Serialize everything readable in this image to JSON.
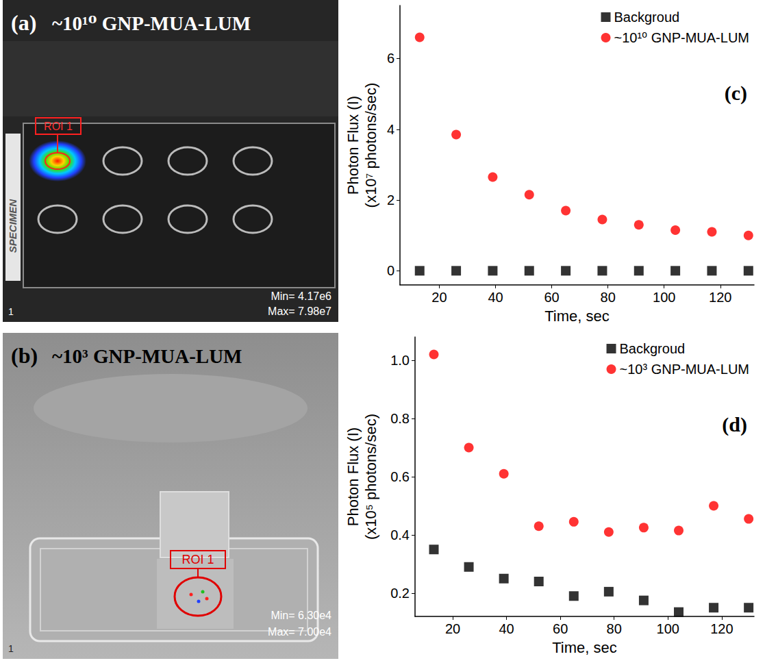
{
  "images": [
    {
      "label": "(a)",
      "title": "~10¹⁰ GNP-MUA-LUM",
      "roi": "ROI 1",
      "specimen": "SPECIMEN",
      "min": "Min= 4.17e6",
      "max": "Max= 7.98e7",
      "frame": "1"
    },
    {
      "label": "(b)",
      "title": "~10³ GNP-MUA-LUM",
      "roi": "ROI 1",
      "min": "Min= 6.30e4",
      "max": "Max= 7.00e4",
      "frame": "1"
    }
  ],
  "chart_data": [
    {
      "type": "scatter",
      "annotations": [
        "(c)"
      ],
      "xlabel": "Time, sec",
      "ylabel": "Photon Flux (I)\n(x10⁷ photons/sec)",
      "x": [
        13,
        26,
        39,
        52,
        65,
        78,
        91,
        104,
        117,
        130
      ],
      "xlim": [
        6,
        132
      ],
      "xticks": [
        20,
        40,
        60,
        80,
        100,
        120
      ],
      "ylim": [
        -0.4,
        7.5
      ],
      "yticks": [
        0,
        2,
        4,
        6
      ],
      "grid": false,
      "legend": "upper right",
      "series": [
        {
          "name": "Backgroud",
          "color": "#000000",
          "marker": "square",
          "values": [
            0,
            0,
            0,
            0,
            0,
            0,
            0,
            0,
            0,
            0
          ]
        },
        {
          "name": "~10¹⁰ GNP-MUA-LUM",
          "color": "#ff0000",
          "marker": "circle",
          "values": [
            6.6,
            3.85,
            2.65,
            2.15,
            1.7,
            1.45,
            1.3,
            1.15,
            1.1,
            1.0
          ]
        }
      ]
    },
    {
      "type": "scatter",
      "annotations": [
        "(d)"
      ],
      "xlabel": "Time, sec",
      "ylabel": "Photon Flux (I)\n(x10⁵ photons/sec)",
      "x": [
        13,
        26,
        39,
        52,
        65,
        78,
        91,
        104,
        117,
        130
      ],
      "xlim": [
        6,
        132
      ],
      "xticks": [
        20,
        40,
        60,
        80,
        100,
        120
      ],
      "ylim": [
        0.12,
        1.08
      ],
      "yticks": [
        0.2,
        0.4,
        0.6,
        0.8,
        {
          "value": 1,
          "label": "1.0"
        }
      ],
      "grid": false,
      "legend": "upper right",
      "series": [
        {
          "name": "Backgroud",
          "color": "#000000",
          "marker": "square",
          "values": [
            0.35,
            0.29,
            0.25,
            0.24,
            0.19,
            0.205,
            0.175,
            0.135,
            0.15,
            0.15
          ]
        },
        {
          "name": "~10³ GNP-MUA-LUM",
          "color": "#ff0000",
          "marker": "circle",
          "values": [
            1.02,
            0.7,
            0.61,
            0.43,
            0.445,
            0.41,
            0.425,
            0.415,
            0.5,
            0.455
          ]
        }
      ]
    }
  ]
}
